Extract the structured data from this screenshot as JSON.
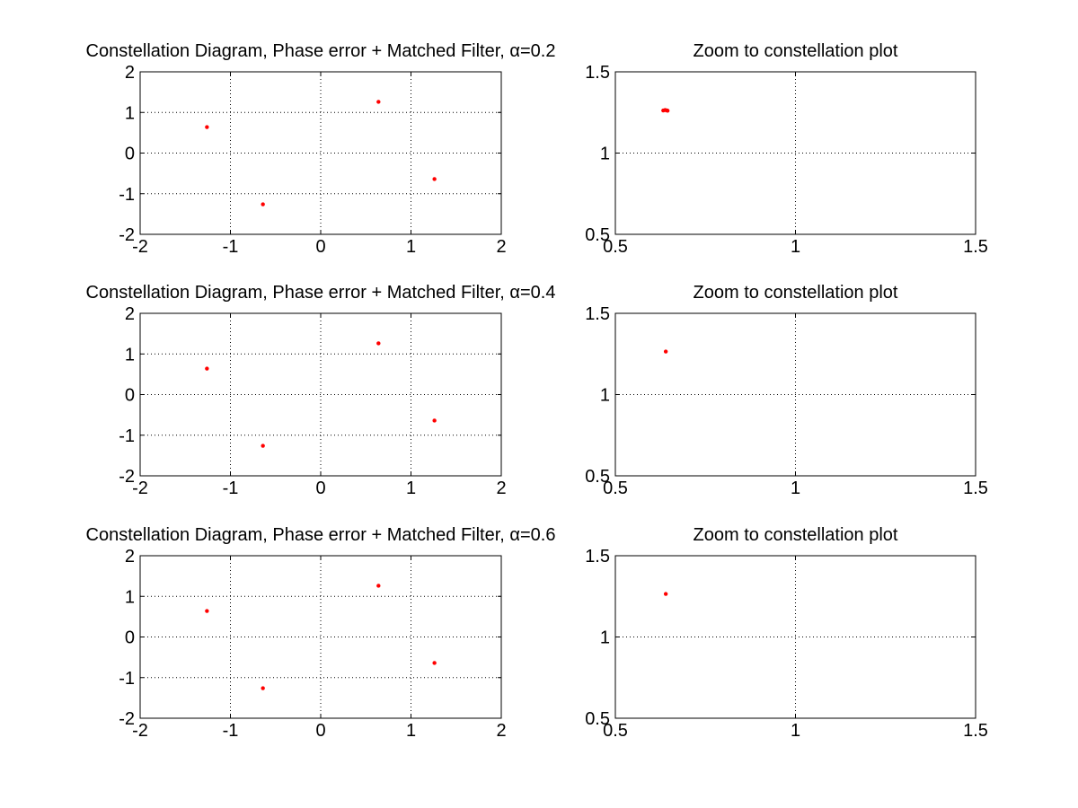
{
  "figure": {
    "background": "#ffffff",
    "marker_color": "#ff0000"
  },
  "chart_data": [
    {
      "type": "scatter",
      "title": "Constellation Diagram, Phase error + Matched Filter, α=0.2",
      "xlim": [
        -2,
        2
      ],
      "ylim": [
        -2,
        2
      ],
      "xticks": [
        -2,
        -1,
        0,
        1,
        2
      ],
      "yticks": [
        -2,
        -1,
        0,
        1,
        2
      ],
      "xtick_labels": [
        "-2",
        "-1",
        "0",
        "1",
        "2"
      ],
      "ytick_labels": [
        "-2",
        "-1",
        "0",
        "1",
        "2"
      ],
      "grid": true,
      "series": [
        {
          "color": "#ff0000",
          "marker": "dot",
          "x": [
            -1.26,
            0.64,
            1.26,
            -0.64
          ],
          "y": [
            0.64,
            1.26,
            -0.64,
            -1.26
          ]
        }
      ]
    },
    {
      "type": "scatter",
      "title": "Zoom to constellation plot",
      "xlim": [
        0.5,
        1.5
      ],
      "ylim": [
        0.5,
        1.5
      ],
      "xticks": [
        0.5,
        1,
        1.5
      ],
      "yticks": [
        0.5,
        1,
        1.5
      ],
      "xtick_labels": [
        "0.5",
        "1",
        "1.5"
      ],
      "ytick_labels": [
        "0.5",
        "1",
        "1.5"
      ],
      "grid": true,
      "series": [
        {
          "color": "#ff0000",
          "marker": "dot",
          "x": [
            0.633,
            0.638,
            0.642,
            0.645
          ],
          "y": [
            1.262,
            1.265,
            1.263,
            1.261
          ]
        }
      ]
    },
    {
      "type": "scatter",
      "title": "Constellation Diagram, Phase error + Matched Filter, α=0.4",
      "xlim": [
        -2,
        2
      ],
      "ylim": [
        -2,
        2
      ],
      "xticks": [
        -2,
        -1,
        0,
        1,
        2
      ],
      "yticks": [
        -2,
        -1,
        0,
        1,
        2
      ],
      "xtick_labels": [
        "-2",
        "-1",
        "0",
        "1",
        "2"
      ],
      "ytick_labels": [
        "-2",
        "-1",
        "0",
        "1",
        "2"
      ],
      "grid": true,
      "series": [
        {
          "color": "#ff0000",
          "marker": "dot",
          "x": [
            -1.26,
            0.64,
            1.26,
            -0.64
          ],
          "y": [
            0.64,
            1.26,
            -0.64,
            -1.26
          ]
        }
      ]
    },
    {
      "type": "scatter",
      "title": "Zoom to constellation plot",
      "xlim": [
        0.5,
        1.5
      ],
      "ylim": [
        0.5,
        1.5
      ],
      "xticks": [
        0.5,
        1,
        1.5
      ],
      "yticks": [
        0.5,
        1,
        1.5
      ],
      "xtick_labels": [
        "0.5",
        "1",
        "1.5"
      ],
      "ytick_labels": [
        "0.5",
        "1",
        "1.5"
      ],
      "grid": true,
      "series": [
        {
          "color": "#ff0000",
          "marker": "dot",
          "x": [
            0.64
          ],
          "y": [
            1.265
          ]
        }
      ]
    },
    {
      "type": "scatter",
      "title": "Constellation Diagram, Phase error + Matched Filter, α=0.6",
      "xlim": [
        -2,
        2
      ],
      "ylim": [
        -2,
        2
      ],
      "xticks": [
        -2,
        -1,
        0,
        1,
        2
      ],
      "yticks": [
        -2,
        -1,
        0,
        1,
        2
      ],
      "xtick_labels": [
        "-2",
        "-1",
        "0",
        "1",
        "2"
      ],
      "ytick_labels": [
        "-2",
        "-1",
        "0",
        "1",
        "2"
      ],
      "grid": true,
      "series": [
        {
          "color": "#ff0000",
          "marker": "dot",
          "x": [
            -1.26,
            0.64,
            1.26,
            -0.64
          ],
          "y": [
            0.64,
            1.26,
            -0.64,
            -1.26
          ]
        }
      ]
    },
    {
      "type": "scatter",
      "title": "Zoom to constellation plot",
      "xlim": [
        0.5,
        1.5
      ],
      "ylim": [
        0.5,
        1.5
      ],
      "xticks": [
        0.5,
        1,
        1.5
      ],
      "yticks": [
        0.5,
        1,
        1.5
      ],
      "xtick_labels": [
        "0.5",
        "1",
        "1.5"
      ],
      "ytick_labels": [
        "0.5",
        "1",
        "1.5"
      ],
      "grid": true,
      "series": [
        {
          "color": "#ff0000",
          "marker": "dot",
          "x": [
            0.64
          ],
          "y": [
            1.265
          ]
        }
      ]
    }
  ]
}
